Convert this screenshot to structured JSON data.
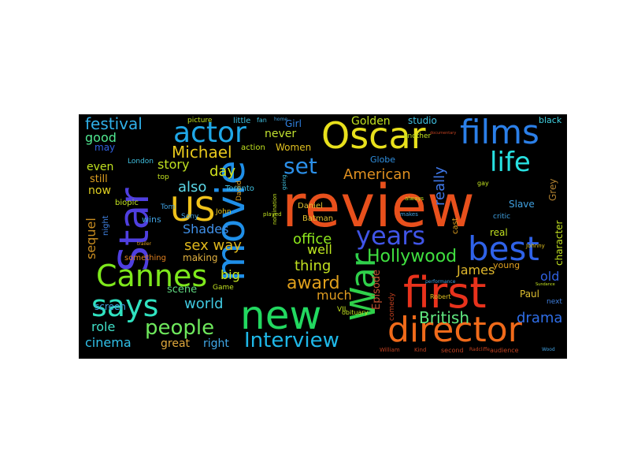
{
  "words": [
    {
      "text": "review",
      "color": "#e8501c",
      "weight": 1.0
    },
    {
      "text": "movie",
      "color": "#1f8fe8",
      "weight": 0.8
    },
    {
      "text": "first",
      "color": "#e8321c",
      "weight": 0.78
    },
    {
      "text": "Star",
      "color": "#4f3fe0",
      "weight": 0.72
    },
    {
      "text": "new",
      "color": "#22d860",
      "weight": 0.72
    },
    {
      "text": "War",
      "color": "#2fd04a",
      "weight": 0.62
    },
    {
      "text": "director",
      "color": "#f06a1a",
      "weight": 0.6
    },
    {
      "text": "Oscar",
      "color": "#e8e01c",
      "weight": 0.58
    },
    {
      "text": "films",
      "color": "#2b7fe8",
      "weight": 0.55
    },
    {
      "text": "US",
      "color": "#f0c21a",
      "weight": 0.52
    },
    {
      "text": "best",
      "color": "#2f62e8",
      "weight": 0.52
    },
    {
      "text": "says",
      "color": "#30e2c0",
      "weight": 0.48
    },
    {
      "text": "Cannes",
      "color": "#7ee81c",
      "weight": 0.48
    },
    {
      "text": "actor",
      "color": "#1fa8e8",
      "weight": 0.45
    },
    {
      "text": "years",
      "color": "#4055e8",
      "weight": 0.42
    },
    {
      "text": "life",
      "color": "#28e0e0",
      "weight": 0.4
    },
    {
      "text": "Interview",
      "color": "#1fb8e8",
      "weight": 0.36
    },
    {
      "text": "people",
      "color": "#6ee85c",
      "weight": 0.34
    },
    {
      "text": "set",
      "color": "#2b8fe8",
      "weight": 0.33
    },
    {
      "text": "Hollywood",
      "color": "#40e040",
      "weight": 0.3
    },
    {
      "text": "award",
      "color": "#e0a01c",
      "weight": 0.3
    },
    {
      "text": "British",
      "color": "#60e880",
      "weight": 0.28
    },
    {
      "text": "festival",
      "color": "#30b0e8",
      "weight": 0.26
    },
    {
      "text": "Michael",
      "color": "#e8c81c",
      "weight": 0.26
    },
    {
      "text": "really",
      "color": "#3f78e8",
      "weight": 0.25
    },
    {
      "text": "sex way",
      "color": "#e0b81c",
      "weight": 0.24
    },
    {
      "text": "American",
      "color": "#e09020",
      "weight": 0.24
    },
    {
      "text": "drama",
      "color": "#2f6ee8",
      "weight": 0.24
    },
    {
      "text": "office",
      "color": "#8ee81c",
      "weight": 0.24
    },
    {
      "text": "world",
      "color": "#40c8e0",
      "weight": 0.23
    },
    {
      "text": "day",
      "color": "#d0e01c",
      "weight": 0.23
    },
    {
      "text": "thing",
      "color": "#c0e020",
      "weight": 0.23
    },
    {
      "text": "also",
      "color": "#5cd8e8",
      "weight": 0.22
    },
    {
      "text": "cinema",
      "color": "#30c0e8",
      "weight": 0.22
    },
    {
      "text": "James",
      "color": "#e0b82c",
      "weight": 0.22
    },
    {
      "text": "role",
      "color": "#40e0c8",
      "weight": 0.22
    },
    {
      "text": "right",
      "color": "#40a8e8",
      "weight": 0.21
    },
    {
      "text": "well",
      "color": "#c0e820",
      "weight": 0.21
    },
    {
      "text": "great",
      "color": "#e0a83c",
      "weight": 0.2
    },
    {
      "text": "big",
      "color": "#c8e820",
      "weight": 0.2
    },
    {
      "text": "much",
      "color": "#e09c20",
      "weight": 0.2
    },
    {
      "text": "story",
      "color": "#c0e020",
      "weight": 0.2
    },
    {
      "text": "Shades",
      "color": "#4090e8",
      "weight": 0.2
    },
    {
      "text": "sequel",
      "color": "#c88c20",
      "weight": 0.2
    },
    {
      "text": "good",
      "color": "#50e890",
      "weight": 0.19
    },
    {
      "text": "Golden",
      "color": "#c0e020",
      "weight": 0.19
    },
    {
      "text": "never",
      "color": "#c0e030",
      "weight": 0.19
    },
    {
      "text": "now",
      "color": "#e0d020",
      "weight": 0.19
    },
    {
      "text": "Episode",
      "color": "#c05030",
      "weight": 0.18
    },
    {
      "text": "old",
      "color": "#3060e0",
      "weight": 0.18
    },
    {
      "text": "even",
      "color": "#c0e020",
      "weight": 0.17
    },
    {
      "text": "still",
      "color": "#e0a020",
      "weight": 0.16
    },
    {
      "text": "may",
      "color": "#3060e0",
      "weight": 0.16
    },
    {
      "text": "scene",
      "color": "#60d880",
      "weight": 0.16
    },
    {
      "text": "Women",
      "color": "#e0c020",
      "weight": 0.15
    },
    {
      "text": "making",
      "color": "#e0b040",
      "weight": 0.15
    },
    {
      "text": "screen",
      "color": "#40a0e0",
      "weight": 0.15
    },
    {
      "text": "real",
      "color": "#c0e020",
      "weight": 0.15
    },
    {
      "text": "studio",
      "color": "#40c0e0",
      "weight": 0.15
    },
    {
      "text": "Grey",
      "color": "#b08030",
      "weight": 0.15
    },
    {
      "text": "Paul",
      "color": "#e0c030",
      "weight": 0.14
    },
    {
      "text": "character",
      "color": "#c0e020",
      "weight": 0.14
    },
    {
      "text": "Slave",
      "color": "#40a0e0",
      "weight": 0.14
    },
    {
      "text": "Girl",
      "color": "#3080e0",
      "weight": 0.14
    },
    {
      "text": "Globe",
      "color": "#3090e0",
      "weight": 0.13
    },
    {
      "text": "black",
      "color": "#40d0e0",
      "weight": 0.13
    },
    {
      "text": "wins",
      "color": "#40a0e0",
      "weight": 0.12
    },
    {
      "text": "night",
      "color": "#4080e0",
      "weight": 0.12
    },
    {
      "text": "young",
      "color": "#e0a020",
      "weight": 0.12
    },
    {
      "text": "comedy",
      "color": "#c04020",
      "weight": 0.11
    },
    {
      "text": "Daniel",
      "color": "#e0c030",
      "weight": 0.11
    },
    {
      "text": "Batman",
      "color": "#e0c030",
      "weight": 0.11
    },
    {
      "text": "cast",
      "color": "#e0a020",
      "weight": 0.11
    },
    {
      "text": "biopic",
      "color": "#c0e020",
      "weight": 0.1
    },
    {
      "text": "action",
      "color": "#c0e020",
      "weight": 0.1
    },
    {
      "text": "Toronto",
      "color": "#40c0e0",
      "weight": 0.1
    },
    {
      "text": "David",
      "color": "#e0a020",
      "weight": 0.1
    },
    {
      "text": "something",
      "color": "#e08020",
      "weight": 0.1
    },
    {
      "text": "little",
      "color": "#40c0e0",
      "weight": 0.09
    },
    {
      "text": "picture",
      "color": "#c0e020",
      "weight": 0.09
    },
    {
      "text": "Sony",
      "color": "#40a0e0",
      "weight": 0.09
    },
    {
      "text": "John",
      "color": "#e0c020",
      "weight": 0.09
    },
    {
      "text": "Game",
      "color": "#c0e020",
      "weight": 0.09
    },
    {
      "text": "Tom",
      "color": "#40a0e0",
      "weight": 0.09
    },
    {
      "text": "London",
      "color": "#40c0e0",
      "weight": 0.09
    },
    {
      "text": "top",
      "color": "#c0e020",
      "weight": 0.09
    },
    {
      "text": "second",
      "color": "#c04020",
      "weight": 0.08
    },
    {
      "text": "another",
      "color": "#c0e020",
      "weight": 0.08
    },
    {
      "text": "next",
      "color": "#4080e0",
      "weight": 0.08
    },
    {
      "text": "critic",
      "color": "#40a0e0",
      "weight": 0.08
    },
    {
      "text": "Robert",
      "color": "#e0c020",
      "weight": 0.07
    },
    {
      "text": "audience",
      "color": "#c04020",
      "weight": 0.07
    },
    {
      "text": "performance",
      "color": "#40a0e0",
      "weight": 0.06
    },
    {
      "text": "nomination",
      "color": "#c0e020",
      "weight": 0.06
    },
    {
      "text": "going",
      "color": "#40c0e0",
      "weight": 0.06
    },
    {
      "text": "obituary",
      "color": "#c0e020",
      "weight": 0.06
    },
    {
      "text": "documentary",
      "color": "#c04020",
      "weight": 0.05
    },
    {
      "text": "always",
      "color": "#c0e020",
      "weight": 0.05
    },
    {
      "text": "makes",
      "color": "#40a0e0",
      "weight": 0.05
    },
    {
      "text": "Kind",
      "color": "#c04020",
      "weight": 0.05
    },
    {
      "text": "William",
      "color": "#c04020",
      "weight": 0.05
    },
    {
      "text": "Radcliffe",
      "color": "#c04020",
      "weight": 0.05
    },
    {
      "text": "played",
      "color": "#c0e020",
      "weight": 0.05
    },
    {
      "text": "Johnny",
      "color": "#e0c020",
      "weight": 0.05
    },
    {
      "text": "trailer",
      "color": "#e0a020",
      "weight": 0.05
    },
    {
      "text": "gay",
      "color": "#c0e020",
      "weight": 0.05
    },
    {
      "text": "fan",
      "color": "#40c0e0",
      "weight": 0.05
    },
    {
      "text": "Sundance",
      "color": "#c0e020",
      "weight": 0.04
    },
    {
      "text": "Wood",
      "color": "#40a0e0",
      "weight": 0.04
    },
    {
      "text": "VII",
      "color": "#c0e020",
      "weight": 0.04
    },
    {
      "text": "home",
      "color": "#40a0e0",
      "weight": 0.04
    }
  ]
}
